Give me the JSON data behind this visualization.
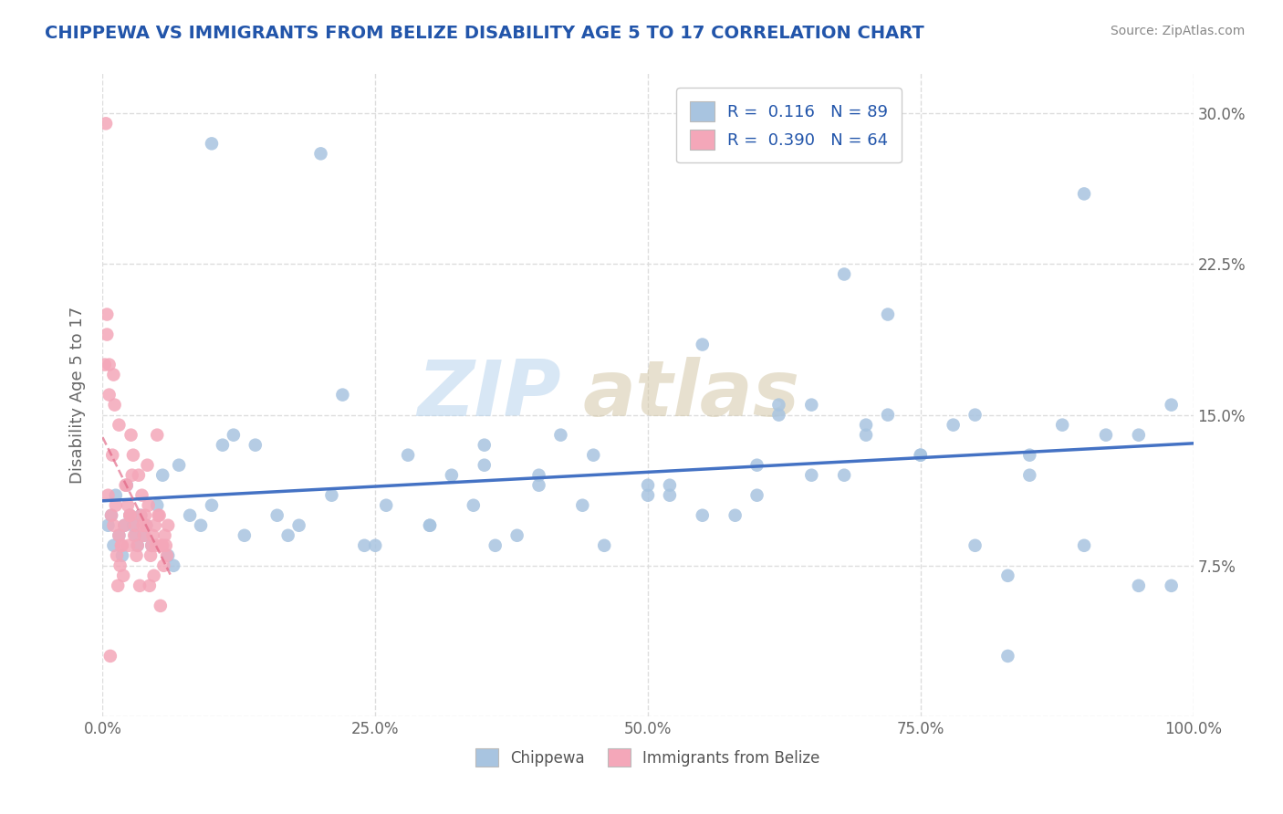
{
  "title": "CHIPPEWA VS IMMIGRANTS FROM BELIZE DISABILITY AGE 5 TO 17 CORRELATION CHART",
  "source": "Source: ZipAtlas.com",
  "ylabel": "Disability Age 5 to 17",
  "r_chippewa": 0.116,
  "n_chippewa": 89,
  "r_belize": 0.39,
  "n_belize": 64,
  "chippewa_color": "#a8c4e0",
  "belize_color": "#f4a7b9",
  "chippewa_line_color": "#4472c4",
  "belize_line_color": "#e06080",
  "watermark_zip": "ZIP",
  "watermark_atlas": "atlas",
  "xlim": [
    0.0,
    1.0
  ],
  "ylim": [
    0.0,
    0.32
  ],
  "xtick_values": [
    0.0,
    0.25,
    0.5,
    0.75,
    1.0
  ],
  "xtick_labels": [
    "0.0%",
    "25.0%",
    "50.0%",
    "75.0%",
    "100.0%"
  ],
  "ytick_values": [
    0.0,
    0.075,
    0.15,
    0.225,
    0.3
  ],
  "ytick_labels": [
    "",
    "7.5%",
    "15.0%",
    "22.5%",
    "30.0%"
  ],
  "chippewa_x": [
    0.005,
    0.008,
    0.01,
    0.012,
    0.015,
    0.018,
    0.02,
    0.022,
    0.025,
    0.028,
    0.03,
    0.032,
    0.035,
    0.038,
    0.04,
    0.045,
    0.05,
    0.055,
    0.06,
    0.065,
    0.07,
    0.08,
    0.09,
    0.1,
    0.11,
    0.12,
    0.14,
    0.16,
    0.18,
    0.2,
    0.22,
    0.24,
    0.26,
    0.28,
    0.3,
    0.32,
    0.34,
    0.36,
    0.38,
    0.4,
    0.42,
    0.44,
    0.46,
    0.5,
    0.52,
    0.55,
    0.58,
    0.6,
    0.62,
    0.65,
    0.68,
    0.7,
    0.72,
    0.75,
    0.78,
    0.8,
    0.83,
    0.85,
    0.88,
    0.9,
    0.92,
    0.95,
    0.98,
    0.1,
    0.13,
    0.17,
    0.21,
    0.25,
    0.3,
    0.35,
    0.4,
    0.45,
    0.5,
    0.55,
    0.6,
    0.65,
    0.7,
    0.75,
    0.8,
    0.85,
    0.9,
    0.95,
    0.98,
    0.62,
    0.68,
    0.72,
    0.83,
    0.52,
    0.35
  ],
  "chippewa_y": [
    0.095,
    0.1,
    0.085,
    0.11,
    0.09,
    0.08,
    0.095,
    0.115,
    0.1,
    0.095,
    0.09,
    0.085,
    0.1,
    0.09,
    0.095,
    0.085,
    0.105,
    0.12,
    0.08,
    0.075,
    0.125,
    0.1,
    0.095,
    0.285,
    0.135,
    0.14,
    0.135,
    0.1,
    0.095,
    0.28,
    0.16,
    0.085,
    0.105,
    0.13,
    0.095,
    0.12,
    0.105,
    0.085,
    0.09,
    0.115,
    0.14,
    0.105,
    0.085,
    0.11,
    0.115,
    0.185,
    0.1,
    0.125,
    0.155,
    0.155,
    0.22,
    0.14,
    0.2,
    0.13,
    0.145,
    0.15,
    0.07,
    0.12,
    0.145,
    0.26,
    0.14,
    0.14,
    0.065,
    0.105,
    0.09,
    0.09,
    0.11,
    0.085,
    0.095,
    0.135,
    0.12,
    0.13,
    0.115,
    0.1,
    0.11,
    0.12,
    0.145,
    0.13,
    0.085,
    0.13,
    0.085,
    0.065,
    0.155,
    0.15,
    0.12,
    0.15,
    0.03,
    0.11,
    0.125
  ],
  "belize_x": [
    0.002,
    0.003,
    0.004,
    0.005,
    0.006,
    0.007,
    0.008,
    0.009,
    0.01,
    0.011,
    0.012,
    0.013,
    0.014,
    0.015,
    0.016,
    0.017,
    0.018,
    0.019,
    0.02,
    0.021,
    0.022,
    0.023,
    0.024,
    0.025,
    0.026,
    0.027,
    0.028,
    0.029,
    0.03,
    0.031,
    0.032,
    0.033,
    0.034,
    0.035,
    0.036,
    0.037,
    0.038,
    0.039,
    0.04,
    0.041,
    0.042,
    0.043,
    0.044,
    0.045,
    0.046,
    0.047,
    0.048,
    0.049,
    0.05,
    0.051,
    0.052,
    0.053,
    0.054,
    0.055,
    0.056,
    0.057,
    0.058,
    0.059,
    0.06,
    0.004,
    0.006,
    0.01,
    0.015,
    0.025
  ],
  "belize_y": [
    0.175,
    0.295,
    0.19,
    0.11,
    0.175,
    0.03,
    0.1,
    0.13,
    0.095,
    0.155,
    0.105,
    0.08,
    0.065,
    0.09,
    0.075,
    0.085,
    0.085,
    0.07,
    0.095,
    0.115,
    0.115,
    0.105,
    0.085,
    0.1,
    0.14,
    0.12,
    0.13,
    0.09,
    0.095,
    0.08,
    0.085,
    0.12,
    0.065,
    0.1,
    0.11,
    0.095,
    0.09,
    0.1,
    0.095,
    0.125,
    0.105,
    0.065,
    0.08,
    0.085,
    0.09,
    0.07,
    0.095,
    0.085,
    0.14,
    0.1,
    0.1,
    0.055,
    0.085,
    0.085,
    0.075,
    0.09,
    0.085,
    0.08,
    0.095,
    0.2,
    0.16,
    0.17,
    0.145,
    0.1
  ]
}
